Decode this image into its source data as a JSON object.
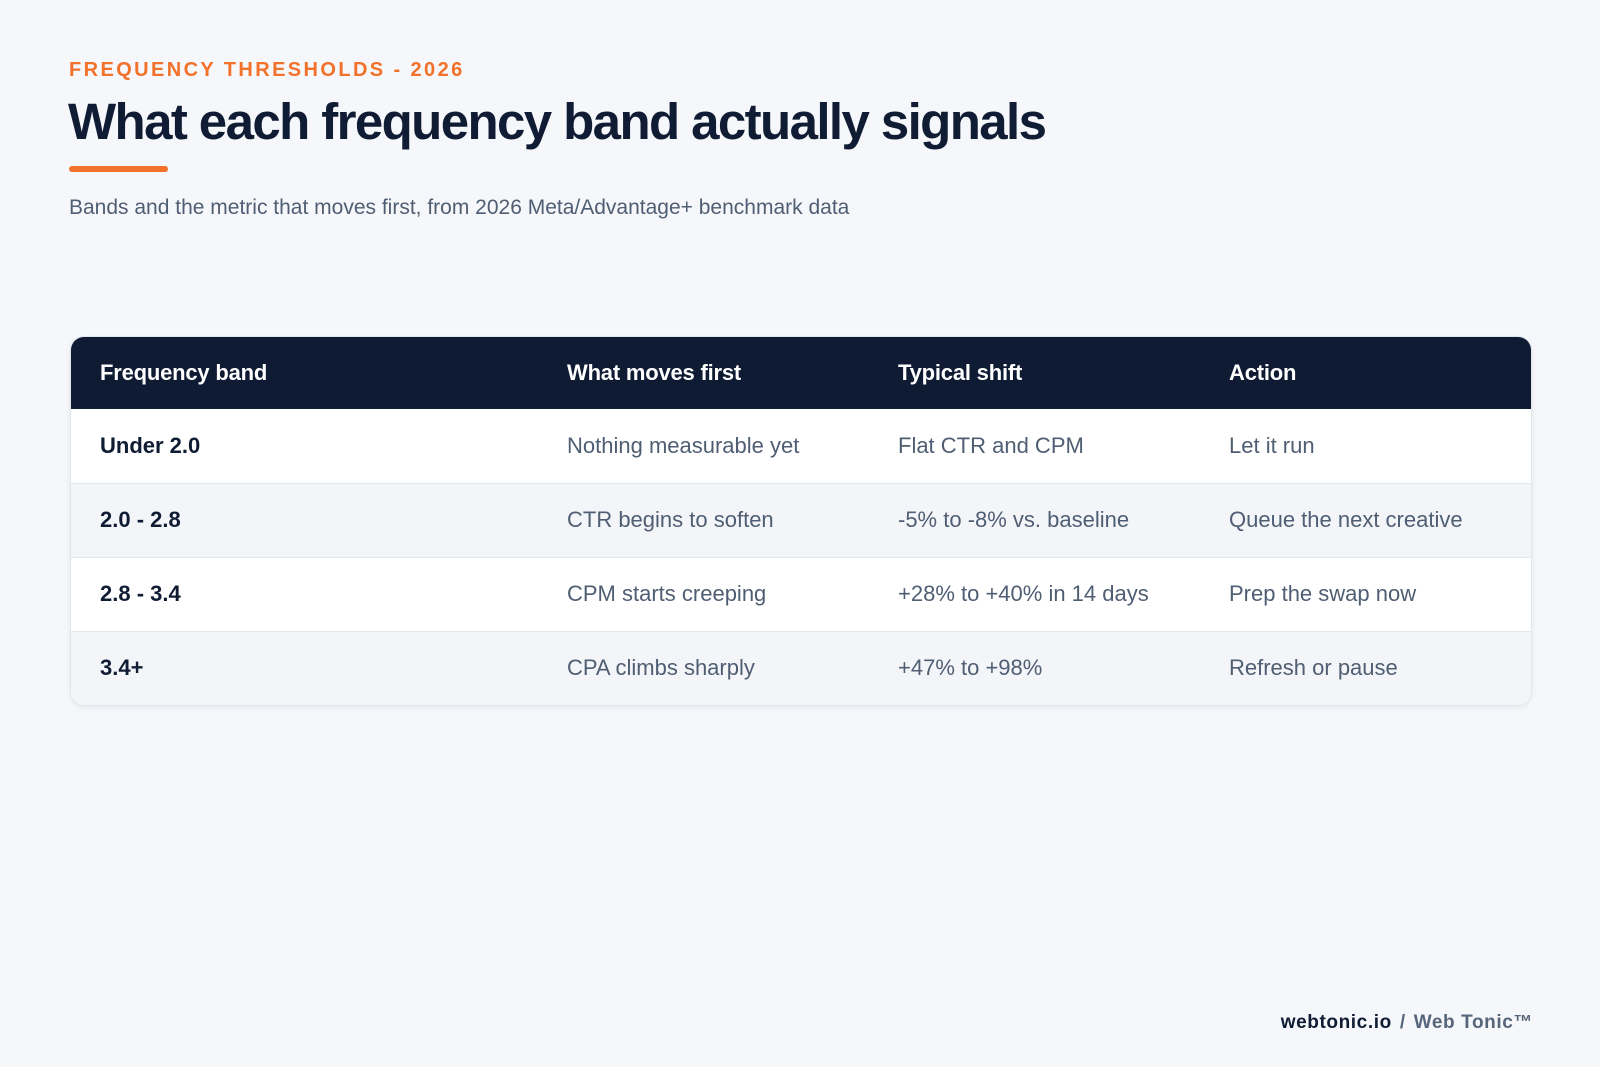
{
  "header": {
    "eyebrow": "FREQUENCY THRESHOLDS - 2026",
    "title": "What each frequency band actually signals",
    "subtitle": "Bands and the metric that moves first, from 2026 Meta/Advantage+ benchmark data"
  },
  "table": {
    "columns": [
      "Frequency band",
      "What moves first",
      "Typical shift",
      "Action"
    ],
    "rows": [
      [
        "Under 2.0",
        "Nothing measurable yet",
        "Flat CTR and CPM",
        "Let it run"
      ],
      [
        "2.0 - 2.8",
        "CTR begins to soften",
        "-5% to -8% vs. baseline",
        "Queue the next creative"
      ],
      [
        "2.8 - 3.4",
        "CPM starts creeping",
        "+28% to +40% in 14 days",
        "Prep the swap now"
      ],
      [
        "3.4+",
        "CPA climbs sharply",
        "+47% to +98%",
        "Refresh or pause"
      ]
    ]
  },
  "footer": {
    "domain": "webtonic.io",
    "separator": "/",
    "brand": "Web Tonic™"
  },
  "colors": {
    "accent": "#f2712b",
    "header_bg": "#0e1b33",
    "page_bg": "#f5f7fa"
  }
}
